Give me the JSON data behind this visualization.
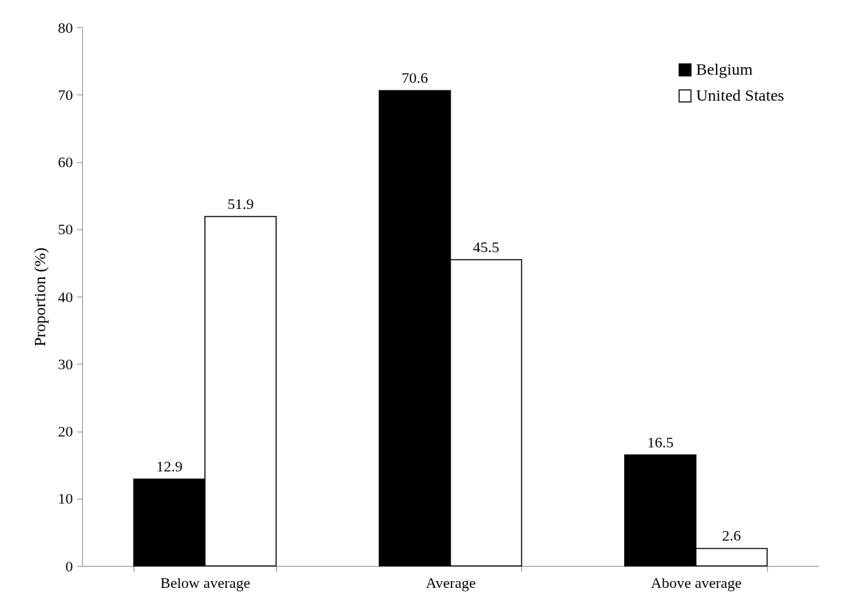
{
  "chart_data": {
    "type": "bar",
    "ylabel": "Proportion (%)",
    "categories": [
      "Below average",
      "Average",
      "Above average"
    ],
    "series": [
      {
        "name": "Belgium",
        "color": "#000000",
        "values": [
          12.9,
          70.6,
          16.5
        ]
      },
      {
        "name": "United States",
        "color": "#ffffff",
        "values": [
          51.9,
          45.5,
          2.6
        ]
      }
    ],
    "ylim": [
      0,
      80
    ],
    "yticks": [
      0,
      10,
      20,
      30,
      40,
      50,
      60,
      70,
      80
    ],
    "grid": false,
    "legend": "top right",
    "data_labels": true
  }
}
